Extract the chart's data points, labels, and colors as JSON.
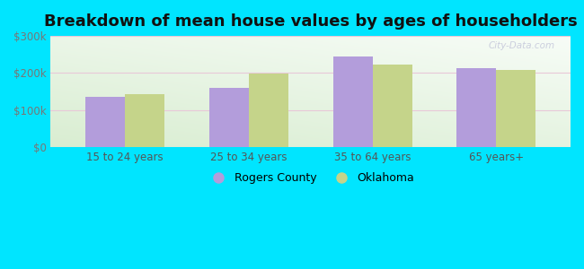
{
  "title": "Breakdown of mean house values by ages of householders",
  "categories": [
    "15 to 24 years",
    "25 to 34 years",
    "35 to 64 years",
    "65 years+"
  ],
  "rogers_county": [
    135000,
    160000,
    245000,
    213000
  ],
  "oklahoma": [
    143000,
    198000,
    222000,
    208000
  ],
  "bar_color_rogers": "#b39ddb",
  "bar_color_oklahoma": "#c5d48a",
  "background_color": "#00e5ff",
  "ylim": [
    0,
    300000
  ],
  "yticks": [
    0,
    100000,
    200000,
    300000
  ],
  "ytick_labels": [
    "$0",
    "$100k",
    "$200k",
    "$300k"
  ],
  "legend_labels": [
    "Rogers County",
    "Oklahoma"
  ],
  "watermark": "City-Data.com",
  "title_fontsize": 13,
  "tick_fontsize": 8.5,
  "legend_fontsize": 9,
  "bar_width": 0.32
}
